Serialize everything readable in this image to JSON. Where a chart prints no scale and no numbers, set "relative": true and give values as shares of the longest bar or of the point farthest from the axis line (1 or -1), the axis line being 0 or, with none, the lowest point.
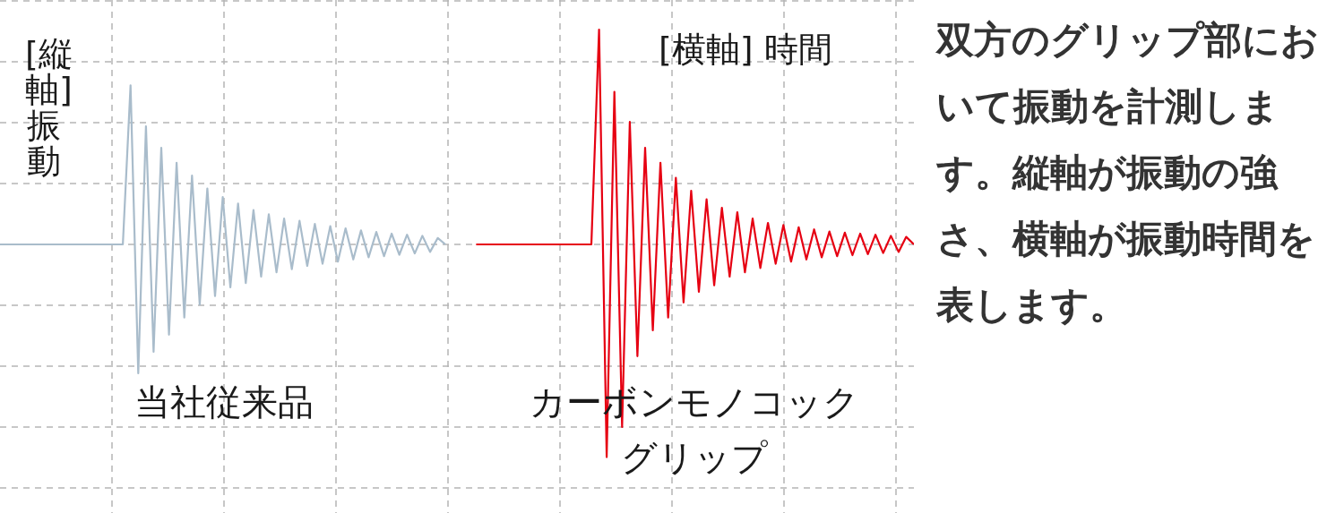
{
  "chart_data": {
    "type": "line",
    "relative": true,
    "xlabel": "[横軸] 時間",
    "ylabel": "[縦軸] 振動",
    "categories": [
      null,
      null,
      null,
      null,
      null,
      null,
      null,
      null,
      null,
      null,
      null,
      null,
      null,
      null,
      null,
      null,
      null,
      null,
      null,
      null,
      null,
      null,
      null,
      null,
      null,
      null,
      null,
      null,
      null,
      null,
      null,
      null,
      null,
      null,
      null,
      null,
      null,
      null,
      null,
      null,
      null,
      null,
      null,
      null,
      null,
      null,
      null,
      null,
      null,
      null,
      null,
      null,
      null,
      null,
      null,
      null,
      null,
      null,
      null,
      null,
      null,
      null,
      null,
      null,
      null,
      null,
      null,
      null,
      null,
      null,
      null,
      null,
      null,
      null,
      null,
      null,
      null,
      null,
      null,
      null,
      null,
      null,
      null,
      null,
      null,
      null,
      null,
      null,
      null,
      null,
      null,
      null,
      null,
      null,
      null,
      null,
      null,
      null,
      null,
      null,
      null,
      null,
      null,
      null,
      null,
      null,
      null,
      null,
      null,
      null,
      null,
      null,
      null,
      null,
      null,
      null,
      null,
      null,
      null,
      null
    ],
    "grid": true,
    "legend": false,
    "marker": "none",
    "line_style": "solid",
    "series": [
      {
        "name": "当社従来品",
        "color": "#a9bccb",
        "values": [
          0,
          0,
          0,
          0,
          0,
          0,
          0,
          0,
          0,
          0,
          0,
          0,
          0,
          0,
          0,
          0,
          0,
          0.74,
          -0.6,
          0.55,
          -0.5,
          0.45,
          -0.42,
          0.38,
          -0.34,
          0.32,
          -0.28,
          0.26,
          -0.24,
          0.22,
          -0.2,
          0.19,
          -0.18,
          0.16,
          -0.15,
          0.14,
          -0.13,
          0.12,
          -0.115,
          0.11,
          -0.1,
          0.095,
          -0.09,
          0.085,
          -0.08,
          0.075,
          -0.07,
          0.065,
          -0.06,
          0.058,
          -0.055,
          0.05,
          -0.048,
          0.045,
          -0.042,
          0.04,
          -0.035,
          0.03,
          0,
          null,
          null,
          null,
          null,
          null,
          null,
          null,
          null,
          null,
          null,
          null,
          null,
          null,
          null,
          null,
          null,
          null,
          null,
          null,
          null,
          null,
          null,
          null,
          null,
          null,
          null,
          null,
          null,
          null,
          null,
          null,
          null,
          null,
          null,
          null,
          null,
          null,
          null,
          null,
          null,
          null,
          null,
          null,
          null,
          null,
          null,
          null,
          null,
          null,
          null,
          null,
          null,
          null,
          null,
          null,
          null,
          null,
          null,
          null,
          null,
          null
        ]
      },
      {
        "name": "カーボンモノコックグリップ",
        "color": "#e60012",
        "values": [
          null,
          null,
          null,
          null,
          null,
          null,
          null,
          null,
          null,
          null,
          null,
          null,
          null,
          null,
          null,
          null,
          null,
          null,
          null,
          null,
          null,
          null,
          null,
          null,
          null,
          null,
          null,
          null,
          null,
          null,
          null,
          null,
          null,
          null,
          null,
          null,
          null,
          null,
          null,
          null,
          null,
          null,
          null,
          null,
          null,
          null,
          null,
          null,
          null,
          null,
          null,
          null,
          null,
          null,
          null,
          null,
          null,
          null,
          null,
          null,
          null,
          null,
          0,
          0,
          0,
          0,
          0,
          0,
          0,
          0,
          0,
          0,
          0,
          0,
          0,
          0,
          0,
          0,
          1.0,
          -0.99,
          0.71,
          -0.85,
          0.57,
          -0.52,
          0.45,
          -0.4,
          0.38,
          -0.34,
          0.31,
          -0.27,
          0.25,
          -0.22,
          0.21,
          -0.19,
          0.17,
          -0.15,
          0.15,
          -0.13,
          0.12,
          -0.11,
          0.1,
          -0.09,
          0.09,
          -0.08,
          0.08,
          -0.07,
          0.07,
          -0.06,
          0.06,
          -0.055,
          0.055,
          -0.05,
          0.05,
          -0.045,
          0.045,
          -0.04,
          0.04,
          -0.035,
          0.035,
          0
        ]
      }
    ],
    "annotations": [
      "双方のグリップ部において振動を計測します。縦軸が振動の強さ、横軸が振動時間を表します。"
    ]
  }
}
